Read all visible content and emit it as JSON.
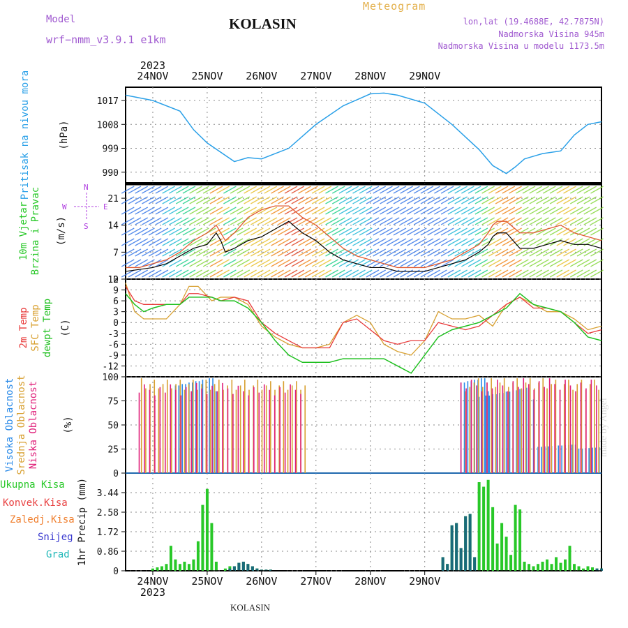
{
  "header": {
    "title": "KOLASIN",
    "meteogram_label": "Meteogram",
    "model_label": "Model",
    "model_name": "wrf−nmm_v3.9.1  e1km",
    "lonlat": "lon,lat (19.4688E, 42.7875N)",
    "elevation": "Nadmorska Visina 945m",
    "model_elevation": "Nadmorska Visina u modelu 1173.5m"
  },
  "footer": {
    "location": "KOLASIN",
    "watermark": "made by Angel"
  },
  "colors": {
    "pressure": "#2aa0e8",
    "wind_speed": "#000000",
    "gust": "#e05a30",
    "temp2m": "#e83a3a",
    "sfc_temp": "#d8a030",
    "dewpt": "#20c020",
    "high_cloud": "#2a8ae8",
    "mid_cloud": "#d8a030",
    "low_cloud": "#e0207a",
    "total_precip": "#28c828",
    "conv_precip": "#e84040",
    "stratiform": "#f08030",
    "snow": "#3a3acf",
    "graupel": "#20b8b8",
    "grid": "#888888"
  },
  "chart_data": [
    {
      "type": "line",
      "id": "pressure",
      "ylabel_lines": [
        "Pritisak na nivou mora",
        "(hPa)"
      ],
      "yticks": [
        990,
        999,
        1008,
        1017
      ],
      "ylim": [
        986,
        1022
      ],
      "x_start": "23NOV 12",
      "x_tick_labels": [
        "24NOV",
        "25NOV",
        "26NOV",
        "27NOV",
        "28NOV",
        "29NOV"
      ],
      "year_label": "2023",
      "x_hours": [
        0,
        12,
        24,
        30,
        36,
        48,
        54,
        60,
        72,
        84,
        96,
        108,
        114,
        120,
        132,
        144,
        156,
        162,
        168,
        172,
        176,
        180,
        184,
        192,
        198,
        204,
        210
      ],
      "series": [
        {
          "name": "pressure",
          "values": [
            1019,
            1017,
            1013,
            1006,
            1001,
            994,
            995.5,
            995,
            999,
            1008,
            1015,
            1019.5,
            1019.8,
            1019,
            1016,
            1008,
            998.5,
            992.5,
            989.5,
            992,
            995,
            996,
            997,
            998,
            1004,
            1008,
            1009
          ]
        }
      ]
    },
    {
      "type": "line",
      "id": "wind",
      "ylabel_lines": [
        "10m Vjetar",
        "Brzina i Pravac",
        "(m/s)"
      ],
      "compass": {
        "n": "N",
        "s": "S",
        "e": "E",
        "w": "W"
      },
      "yticks": [
        0,
        7,
        14,
        21
      ],
      "ylim": [
        0,
        25
      ],
      "x_hours": [
        0,
        6,
        12,
        18,
        24,
        30,
        36,
        40,
        42,
        44,
        48,
        54,
        60,
        66,
        72,
        78,
        84,
        90,
        96,
        102,
        108,
        114,
        120,
        126,
        132,
        138,
        144,
        150,
        156,
        160,
        162,
        164,
        168,
        174,
        180,
        186,
        192,
        198,
        204,
        210
      ],
      "series": [
        {
          "name": "wind_speed",
          "values": [
            2,
            2.5,
            3,
            4,
            6,
            8,
            9,
            12,
            10,
            7,
            8,
            10,
            11,
            13,
            15,
            12,
            10,
            7,
            5,
            4,
            3,
            3,
            2,
            2,
            2,
            3,
            4,
            5,
            7,
            9,
            11,
            12,
            12,
            8,
            8,
            9,
            10,
            9,
            9,
            8
          ]
        },
        {
          "name": "gust",
          "values": [
            3,
            3,
            4,
            5,
            7,
            10,
            12,
            14,
            12,
            10,
            12,
            16,
            18,
            19,
            19,
            16,
            14,
            11,
            8,
            6,
            5,
            4,
            3,
            3,
            3,
            4,
            5,
            7,
            9,
            12,
            14,
            15,
            15,
            12,
            12,
            13,
            14,
            12,
            11,
            10
          ]
        }
      ]
    },
    {
      "type": "line",
      "id": "temperature",
      "ylabel_lines": [
        "2m Temp",
        "SFC Temp",
        "dewpt Temp",
        "(C)"
      ],
      "yticks": [
        -12,
        -9,
        -6,
        -3,
        0,
        3,
        6,
        9,
        12
      ],
      "ylim": [
        -15,
        12
      ],
      "x_hours": [
        0,
        4,
        8,
        12,
        18,
        24,
        28,
        32,
        38,
        42,
        48,
        54,
        60,
        66,
        72,
        78,
        84,
        90,
        96,
        102,
        108,
        114,
        120,
        126,
        132,
        138,
        144,
        150,
        156,
        162,
        168,
        174,
        180,
        186,
        192,
        198,
        204,
        210
      ],
      "series": [
        {
          "name": "temp2m",
          "values": [
            10,
            6,
            5,
            5,
            5,
            5,
            8,
            8,
            7,
            6,
            7,
            6,
            0,
            -3,
            -5,
            -7,
            -7,
            -7,
            0,
            1,
            -2,
            -5,
            -6,
            -5,
            -5,
            0,
            -1,
            -2,
            -1,
            2,
            5,
            7,
            4,
            4,
            3,
            0,
            -3,
            -2
          ]
        },
        {
          "name": "sfc_temp",
          "values": [
            11,
            3,
            1,
            1,
            1,
            5,
            10,
            10,
            6,
            7,
            7,
            5,
            -1,
            -4,
            -6,
            -7,
            -7,
            -6,
            0,
            2,
            0,
            -6,
            -8,
            -9,
            -5,
            3,
            1,
            1,
            2,
            -1,
            5,
            7,
            5,
            3,
            3,
            1,
            -2,
            -1
          ]
        },
        {
          "name": "dewpt",
          "values": [
            8,
            5,
            3,
            4,
            5,
            5,
            7,
            7,
            7,
            6,
            6,
            4,
            0,
            -5,
            -9,
            -11,
            -11,
            -11,
            -10,
            -10,
            -10,
            -10,
            -12,
            -14,
            -9,
            -4,
            -2,
            -1,
            0,
            2,
            4,
            8,
            5,
            4,
            3,
            0,
            -4,
            -5
          ]
        }
      ]
    },
    {
      "type": "bar",
      "id": "clouds",
      "ylabel_lines": [
        "Visoka Oblacnost",
        "Srednja Oblacnost",
        "Niska Oblacnost",
        "(%)"
      ],
      "yticks": [
        0,
        25,
        50,
        75,
        100
      ],
      "ylim": [
        0,
        100
      ],
      "series": [
        {
          "name": "high_cloud",
          "segments": [
            [
              22,
              40,
              100
            ],
            [
              148,
              160,
              100
            ],
            [
              156,
              180,
              90
            ],
            [
              182,
              210,
              30
            ]
          ]
        },
        {
          "name": "mid_cloud",
          "segments": [
            [
              7,
              80,
              100
            ],
            [
              150,
              186,
              100
            ],
            [
              186,
              210,
              100
            ]
          ]
        },
        {
          "name": "low_cloud",
          "segments": [
            [
              6,
              78,
              95
            ],
            [
              148,
              210,
              100
            ]
          ]
        }
      ]
    },
    {
      "type": "bar",
      "id": "precip",
      "ylabel_lines": [
        "Ukupna Kisa",
        "Konvek.Kisa",
        "Zaledj.Kisa",
        "Snijeg",
        "Grad",
        "1hr Precip (mm)"
      ],
      "yticks": [
        0,
        0.86,
        1.72,
        2.58,
        3.44
      ],
      "ylim": [
        0,
        4.3
      ],
      "x_hours": [
        12,
        14,
        16,
        18,
        20,
        22,
        24,
        26,
        28,
        30,
        32,
        34,
        36,
        38,
        40,
        42,
        44,
        46,
        48,
        50,
        52,
        54,
        56,
        58,
        60,
        62,
        64,
        66,
        140,
        142,
        144,
        146,
        148,
        150,
        152,
        154,
        156,
        158,
        160,
        162,
        164,
        166,
        168,
        170,
        172,
        174,
        176,
        178,
        180,
        182,
        184,
        186,
        188,
        190,
        192,
        194,
        196,
        198,
        200,
        202,
        204,
        206,
        208,
        210
      ],
      "series": [
        {
          "name": "total_precip",
          "values": [
            0.1,
            0.15,
            0.2,
            0.3,
            1.1,
            0.5,
            0.3,
            0.4,
            0.3,
            0.5,
            1.3,
            2.9,
            3.6,
            2.1,
            0.4,
            0.0,
            0.1,
            0.2,
            0.2,
            0.35,
            0.4,
            0.3,
            0.2,
            0.1,
            0.05,
            0.05,
            0.05,
            0.0,
            0.6,
            0.3,
            2.0,
            2.1,
            1.0,
            2.4,
            2.5,
            0.6,
            3.9,
            3.7,
            4.0,
            2.8,
            1.2,
            2.1,
            1.5,
            0.7,
            2.9,
            2.7,
            0.4,
            0.3,
            0.2,
            0.3,
            0.4,
            0.5,
            0.3,
            0.6,
            0.35,
            0.5,
            1.1,
            0.3,
            0.2,
            0.1,
            0.2,
            0.15,
            0.1,
            0.1
          ]
        },
        {
          "name": "snow",
          "values": [
            0,
            0,
            0,
            0,
            0,
            0,
            0,
            0,
            0,
            0,
            0,
            0,
            0,
            0,
            0,
            0,
            0,
            0.1,
            0.2,
            0.35,
            0.4,
            0.3,
            0.2,
            0.1,
            0.05,
            0.05,
            0.05,
            0,
            0.6,
            0.3,
            2.0,
            2.1,
            1.0,
            2.4,
            2.5,
            0.6,
            0,
            0,
            0,
            0,
            0,
            0,
            0,
            0,
            0,
            0,
            0,
            0,
            0,
            0,
            0,
            0,
            0,
            0,
            0,
            0,
            0,
            0,
            0,
            0,
            0,
            0,
            0.1,
            0.1
          ]
        }
      ]
    }
  ]
}
